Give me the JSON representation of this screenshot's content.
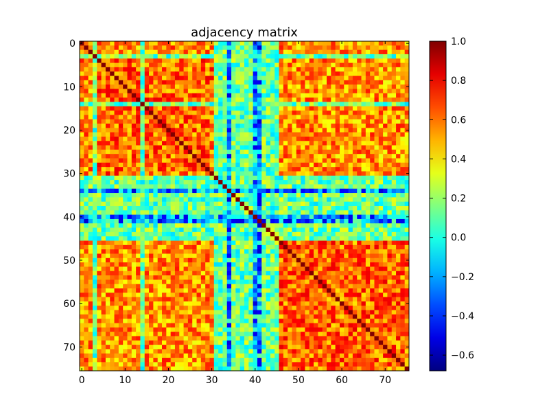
{
  "chart_data": {
    "type": "heatmap",
    "title": "adjacency matrix",
    "rows": 76,
    "cols": 76,
    "x_ticks": [
      0,
      10,
      20,
      30,
      40,
      50,
      60,
      70
    ],
    "y_ticks": [
      0,
      10,
      20,
      30,
      40,
      50,
      60,
      70
    ],
    "xlim": [
      -0.5,
      75.5
    ],
    "ylim": [
      75.5,
      -0.5
    ],
    "colormap": "jet",
    "vmin": -0.68,
    "vmax": 1.0,
    "colorbar_ticks": [
      1.0,
      0.8,
      0.6,
      0.4,
      0.2,
      0.0,
      -0.2,
      -0.4,
      -0.6
    ],
    "colorbar_tick_labels": [
      "1.0",
      "0.8",
      "0.6",
      "0.4",
      "0.2",
      "0.0",
      "−0.2",
      "−0.4",
      "−0.6"
    ],
    "diagonal_value": 1.0,
    "structure": {
      "low_correlation_nodes": [
        3,
        14,
        31,
        32,
        33,
        34,
        35,
        36,
        37,
        38,
        39,
        40,
        41,
        42,
        43,
        44,
        45
      ],
      "strong_negative_nodes": [
        34,
        40,
        41
      ],
      "cluster_blocks": [
        [
          4,
          30
        ],
        [
          46,
          75
        ]
      ],
      "within_cluster_mean": 0.62,
      "across_cluster_mean": 0.55,
      "low_node_mean": 0.12
    },
    "grid": false
  }
}
